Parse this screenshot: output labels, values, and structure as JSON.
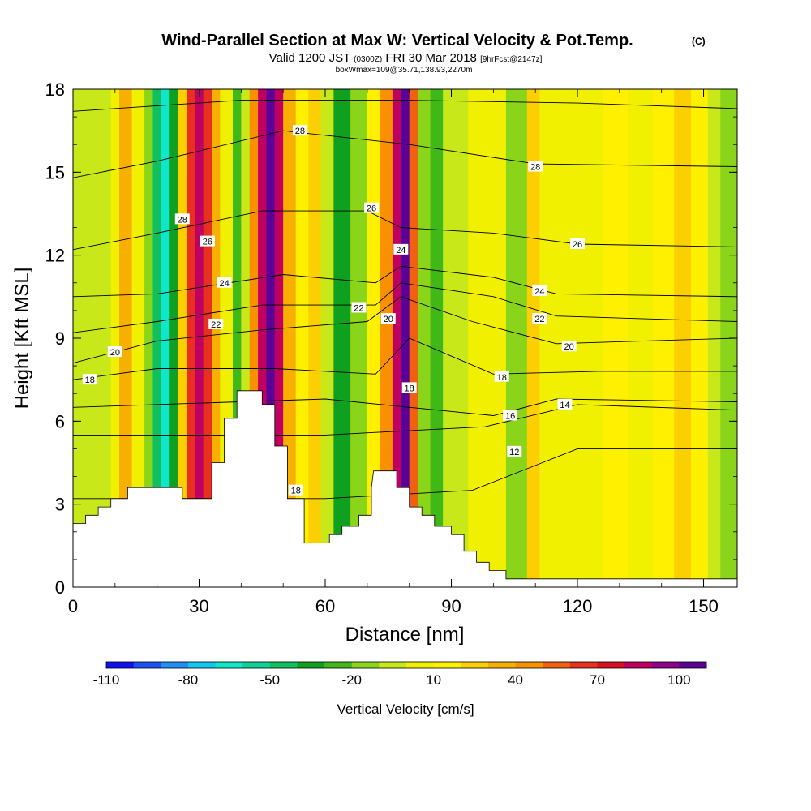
{
  "chart_data": {
    "type": "heatmap",
    "title": "Wind-Parallel Section at Max W: Vertical Velocity & Pot.Temp.",
    "title_unit": "(C)",
    "subtitle_parts": [
      "Valid 1200 JST",
      "(0300Z)",
      "FRI 30 Mar 2018",
      "[9hrFcst@2147z]"
    ],
    "subtitle2": "boxWmax=109@35.71,138.93,2270m",
    "xlabel": "Distance [nm]",
    "ylabel": "Height [Kft MSL]",
    "xlim": [
      0,
      158
    ],
    "ylim": [
      0,
      18
    ],
    "xticks": [
      0,
      30,
      60,
      90,
      120,
      150
    ],
    "yticks": [
      0,
      3,
      6,
      9,
      12,
      15,
      18
    ],
    "colorbar": {
      "label": "Vertical Velocity [cm/s]",
      "tick_labels": [
        "-110",
        "-80",
        "-50",
        "-20",
        "10",
        "40",
        "70",
        "100"
      ],
      "tick_values": [
        -110,
        -80,
        -50,
        -20,
        10,
        40,
        70,
        100
      ],
      "range": [
        -110,
        110
      ],
      "colors": [
        "#1010f0",
        "#1a50f5",
        "#1f8ff5",
        "#10c8f0",
        "#10e6c8",
        "#10d09a",
        "#10c060",
        "#10a020",
        "#40b818",
        "#8ad41a",
        "#c8e81a",
        "#f0f000",
        "#fff000",
        "#fcd000",
        "#f8b000",
        "#f89000",
        "#f06010",
        "#e83020",
        "#d81020",
        "#c00060",
        "#90008a",
        "#5a0096"
      ]
    },
    "velocity_cells": [
      {
        "x0": 0,
        "x1": 9,
        "value": -5
      },
      {
        "x0": 9,
        "x1": 11,
        "value": 8
      },
      {
        "x0": 11,
        "x1": 14,
        "value": 32
      },
      {
        "x0": 14,
        "x1": 17,
        "value": 2
      },
      {
        "x0": 17,
        "x1": 19,
        "value": -18
      },
      {
        "x0": 19,
        "x1": 21,
        "value": -45
      },
      {
        "x0": 21,
        "x1": 23,
        "value": -68
      },
      {
        "x0": 23,
        "x1": 25,
        "value": -40
      },
      {
        "x0": 25,
        "x1": 27,
        "value": 20
      },
      {
        "x0": 27,
        "x1": 29,
        "value": 60
      },
      {
        "x0": 29,
        "x1": 31,
        "value": 80
      },
      {
        "x0": 31,
        "x1": 33,
        "value": 60
      },
      {
        "x0": 33,
        "x1": 35,
        "value": 30
      },
      {
        "x0": 35,
        "x1": 38,
        "value": 5
      },
      {
        "x0": 38,
        "x1": 40,
        "value": -25
      },
      {
        "x0": 40,
        "x1": 42,
        "value": -10
      },
      {
        "x0": 42,
        "x1": 44,
        "value": 40
      },
      {
        "x0": 44,
        "x1": 46,
        "value": 80
      },
      {
        "x0": 46,
        "x1": 48,
        "value": 105
      },
      {
        "x0": 48,
        "x1": 50,
        "value": 80
      },
      {
        "x0": 50,
        "x1": 53,
        "value": 35
      },
      {
        "x0": 53,
        "x1": 56,
        "value": 12
      },
      {
        "x0": 56,
        "x1": 59,
        "value": 25
      },
      {
        "x0": 59,
        "x1": 62,
        "value": -5
      },
      {
        "x0": 62,
        "x1": 66,
        "value": -32
      },
      {
        "x0": 66,
        "x1": 70,
        "value": -12
      },
      {
        "x0": 70,
        "x1": 73,
        "value": 18
      },
      {
        "x0": 73,
        "x1": 76,
        "value": 42
      },
      {
        "x0": 76,
        "x1": 78,
        "value": 85
      },
      {
        "x0": 78,
        "x1": 80,
        "value": 105
      },
      {
        "x0": 80,
        "x1": 82,
        "value": 55
      },
      {
        "x0": 82,
        "x1": 85,
        "value": -12
      },
      {
        "x0": 85,
        "x1": 88,
        "value": -28
      },
      {
        "x0": 88,
        "x1": 91,
        "value": -10
      },
      {
        "x0": 91,
        "x1": 94,
        "value": -5
      },
      {
        "x0": 94,
        "x1": 98,
        "value": 8
      },
      {
        "x0": 98,
        "x1": 103,
        "value": 0
      },
      {
        "x0": 103,
        "x1": 108,
        "value": -12
      },
      {
        "x0": 108,
        "x1": 111,
        "value": 28
      },
      {
        "x0": 111,
        "x1": 114,
        "value": 8
      },
      {
        "x0": 114,
        "x1": 120,
        "value": 2
      },
      {
        "x0": 120,
        "x1": 126,
        "value": 6
      },
      {
        "x0": 126,
        "x1": 132,
        "value": 10
      },
      {
        "x0": 132,
        "x1": 138,
        "value": 4
      },
      {
        "x0": 138,
        "x1": 143,
        "value": 10
      },
      {
        "x0": 143,
        "x1": 147,
        "value": 28
      },
      {
        "x0": 147,
        "x1": 151,
        "value": 10
      },
      {
        "x0": 151,
        "x1": 154,
        "value": -5
      },
      {
        "x0": 154,
        "x1": 158,
        "value": -20
      }
    ],
    "terrain": [
      [
        0,
        2.3
      ],
      [
        3,
        2.3
      ],
      [
        3,
        2.6
      ],
      [
        6,
        2.6
      ],
      [
        6,
        2.9
      ],
      [
        9,
        2.9
      ],
      [
        9,
        3.2
      ],
      [
        13,
        3.2
      ],
      [
        13,
        3.6
      ],
      [
        22,
        3.6
      ],
      [
        26,
        3.6
      ],
      [
        26,
        3.2
      ],
      [
        33,
        3.2
      ],
      [
        33,
        4.5
      ],
      [
        36,
        4.5
      ],
      [
        36,
        6.1
      ],
      [
        39,
        6.1
      ],
      [
        39,
        7.1
      ],
      [
        45,
        7.1
      ],
      [
        45,
        6.6
      ],
      [
        48,
        6.6
      ],
      [
        48,
        5.1
      ],
      [
        51,
        5.1
      ],
      [
        51,
        3.2
      ],
      [
        55,
        3.2
      ],
      [
        55,
        1.6
      ],
      [
        61,
        1.6
      ],
      [
        61,
        1.9
      ],
      [
        64,
        1.9
      ],
      [
        64,
        2.2
      ],
      [
        68,
        2.2
      ],
      [
        68,
        2.6
      ],
      [
        71,
        2.6
      ],
      [
        71,
        3.6
      ],
      [
        71.5,
        4.2
      ],
      [
        77,
        4.2
      ],
      [
        77,
        3.6
      ],
      [
        80,
        3.6
      ],
      [
        80,
        2.9
      ],
      [
        83,
        2.9
      ],
      [
        83,
        2.6
      ],
      [
        86,
        2.6
      ],
      [
        86,
        2.2
      ],
      [
        90,
        2.2
      ],
      [
        90,
        1.9
      ],
      [
        93,
        1.9
      ],
      [
        93,
        1.3
      ],
      [
        96,
        1.3
      ],
      [
        96,
        0.9
      ],
      [
        99,
        0.9
      ],
      [
        99,
        0.6
      ],
      [
        103,
        0.6
      ],
      [
        103,
        0.3
      ],
      [
        158,
        0.3
      ]
    ],
    "isentropes": [
      {
        "label": "12",
        "pts": [
          [
            0,
            3.2
          ],
          [
            60,
            3.2
          ],
          [
            95,
            3.5
          ],
          [
            120,
            5.0
          ],
          [
            158,
            5.0
          ]
        ]
      },
      {
        "label": "14",
        "pts": [
          [
            0,
            5.5
          ],
          [
            60,
            5.5
          ],
          [
            98,
            5.8
          ],
          [
            120,
            6.6
          ],
          [
            158,
            6.4
          ]
        ]
      },
      {
        "label": "16",
        "pts": [
          [
            0,
            6.5
          ],
          [
            60,
            6.8
          ],
          [
            100,
            6.2
          ],
          [
            115,
            6.8
          ],
          [
            158,
            6.7
          ]
        ]
      },
      {
        "label": "18",
        "pts": [
          [
            0,
            7.5
          ],
          [
            20,
            7.9
          ],
          [
            48,
            7.9
          ],
          [
            72,
            7.7
          ],
          [
            80,
            9.0
          ],
          [
            100,
            7.7
          ],
          [
            125,
            7.8
          ],
          [
            158,
            7.8
          ]
        ]
      },
      {
        "label": "20",
        "pts": [
          [
            0,
            8.1
          ],
          [
            20,
            8.9
          ],
          [
            45,
            9.3
          ],
          [
            70,
            9.6
          ],
          [
            78,
            10.5
          ],
          [
            95,
            9.6
          ],
          [
            115,
            8.8
          ],
          [
            158,
            9.0
          ]
        ]
      },
      {
        "label": "22",
        "pts": [
          [
            0,
            9.2
          ],
          [
            20,
            9.6
          ],
          [
            45,
            10.2
          ],
          [
            72,
            10.2
          ],
          [
            78,
            11.0
          ],
          [
            100,
            10.5
          ],
          [
            115,
            9.8
          ],
          [
            158,
            9.6
          ]
        ]
      },
      {
        "label": "24",
        "pts": [
          [
            0,
            10.5
          ],
          [
            20,
            10.6
          ],
          [
            50,
            11.3
          ],
          [
            72,
            11.0
          ],
          [
            78,
            11.6
          ],
          [
            100,
            11.2
          ],
          [
            115,
            10.6
          ],
          [
            158,
            10.5
          ]
        ]
      },
      {
        "label": "26",
        "pts": [
          [
            0,
            12.2
          ],
          [
            20,
            12.8
          ],
          [
            45,
            13.6
          ],
          [
            70,
            13.6
          ],
          [
            78,
            13.0
          ],
          [
            100,
            12.8
          ],
          [
            120,
            12.4
          ],
          [
            158,
            12.3
          ]
        ]
      },
      {
        "label": "28",
        "pts": [
          [
            0,
            14.8
          ],
          [
            20,
            15.4
          ],
          [
            50,
            16.5
          ],
          [
            80,
            16.0
          ],
          [
            110,
            15.3
          ],
          [
            158,
            15.2
          ]
        ]
      },
      {
        "label": "",
        "pts": [
          [
            0,
            17.2
          ],
          [
            40,
            17.6
          ],
          [
            80,
            17.6
          ],
          [
            120,
            17.5
          ],
          [
            158,
            17.3
          ]
        ]
      }
    ],
    "contour_labels": [
      {
        "text": "28",
        "x": 54,
        "y": 16.5
      },
      {
        "text": "28",
        "x": 110,
        "y": 15.2
      },
      {
        "text": "28",
        "x": 26,
        "y": 13.3
      },
      {
        "text": "26",
        "x": 71,
        "y": 13.7
      },
      {
        "text": "26",
        "x": 32,
        "y": 12.5
      },
      {
        "text": "26",
        "x": 120,
        "y": 12.4
      },
      {
        "text": "24",
        "x": 78,
        "y": 12.2
      },
      {
        "text": "24",
        "x": 36,
        "y": 11.0
      },
      {
        "text": "24",
        "x": 111,
        "y": 10.7
      },
      {
        "text": "22",
        "x": 68,
        "y": 10.1
      },
      {
        "text": "22",
        "x": 34,
        "y": 9.5
      },
      {
        "text": "22",
        "x": 111,
        "y": 9.7
      },
      {
        "text": "20",
        "x": 75,
        "y": 9.7
      },
      {
        "text": "20",
        "x": 10,
        "y": 8.5
      },
      {
        "text": "20",
        "x": 118,
        "y": 8.7
      },
      {
        "text": "18",
        "x": 4,
        "y": 7.5
      },
      {
        "text": "18",
        "x": 80,
        "y": 7.2
      },
      {
        "text": "18",
        "x": 102,
        "y": 7.6
      },
      {
        "text": "18",
        "x": 53,
        "y": 3.5
      },
      {
        "text": "16",
        "x": 104,
        "y": 6.2
      },
      {
        "text": "14",
        "x": 117,
        "y": 6.6
      },
      {
        "text": "12",
        "x": 105,
        "y": 4.9
      }
    ]
  }
}
